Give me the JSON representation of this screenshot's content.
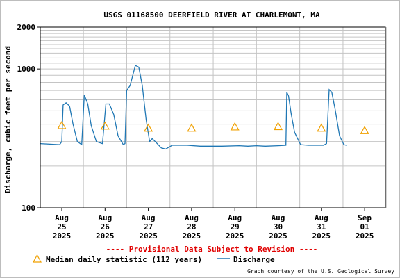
{
  "chart_data": {
    "type": "line",
    "title": "USGS 01168500 DEERFIELD RIVER AT CHARLEMONT, MA",
    "ylabel": "Discharge, cubic feet per second",
    "xlabel": "",
    "y_scale": "log",
    "ylim": [
      100,
      2000
    ],
    "y_tick_labels": [
      {
        "value": 100,
        "label": "100"
      },
      {
        "value": 1000,
        "label": "1000"
      },
      {
        "value": 2000,
        "label": "2000"
      }
    ],
    "x_tick_labels": [
      {
        "day": 0,
        "lines": [
          "Aug",
          "25",
          "2025"
        ]
      },
      {
        "day": 1,
        "lines": [
          "Aug",
          "26",
          "2025"
        ]
      },
      {
        "day": 2,
        "lines": [
          "Aug",
          "27",
          "2025"
        ]
      },
      {
        "day": 3,
        "lines": [
          "Aug",
          "28",
          "2025"
        ]
      },
      {
        "day": 4,
        "lines": [
          "Aug",
          "29",
          "2025"
        ]
      },
      {
        "day": 5,
        "lines": [
          "Aug",
          "30",
          "2025"
        ]
      },
      {
        "day": 6,
        "lines": [
          "Aug",
          "31",
          "2025"
        ]
      },
      {
        "day": 7,
        "lines": [
          "Sep",
          "01",
          "2025"
        ]
      }
    ],
    "grid": true,
    "series": [
      {
        "name": "Discharge",
        "color": "#1f77b4",
        "points": [
          [
            -0.5,
            290
          ],
          [
            -0.05,
            285
          ],
          [
            0.0,
            300
          ],
          [
            0.03,
            550
          ],
          [
            0.1,
            570
          ],
          [
            0.18,
            540
          ],
          [
            0.26,
            400
          ],
          [
            0.36,
            300
          ],
          [
            0.46,
            285
          ],
          [
            0.52,
            650
          ],
          [
            0.6,
            560
          ],
          [
            0.68,
            390
          ],
          [
            0.8,
            300
          ],
          [
            0.94,
            290
          ],
          [
            1.02,
            560
          ],
          [
            1.1,
            560
          ],
          [
            1.2,
            470
          ],
          [
            1.3,
            330
          ],
          [
            1.42,
            285
          ],
          [
            1.46,
            290
          ],
          [
            1.5,
            700
          ],
          [
            1.58,
            760
          ],
          [
            1.7,
            1060
          ],
          [
            1.78,
            1030
          ],
          [
            1.86,
            760
          ],
          [
            1.95,
            430
          ],
          [
            2.03,
            300
          ],
          [
            2.09,
            315
          ],
          [
            2.16,
            300
          ],
          [
            2.3,
            270
          ],
          [
            2.4,
            265
          ],
          [
            2.55,
            282
          ],
          [
            2.9,
            282
          ],
          [
            3.2,
            278
          ],
          [
            3.7,
            278
          ],
          [
            4.1,
            280
          ],
          [
            4.3,
            278
          ],
          [
            4.5,
            280
          ],
          [
            4.7,
            278
          ],
          [
            5.0,
            280
          ],
          [
            5.18,
            282
          ],
          [
            5.2,
            680
          ],
          [
            5.24,
            640
          ],
          [
            5.3,
            480
          ],
          [
            5.38,
            350
          ],
          [
            5.52,
            285
          ],
          [
            5.7,
            282
          ],
          [
            6.05,
            282
          ],
          [
            6.12,
            290
          ],
          [
            6.18,
            710
          ],
          [
            6.24,
            680
          ],
          [
            6.32,
            510
          ],
          [
            6.42,
            330
          ],
          [
            6.52,
            285
          ],
          [
            6.58,
            282
          ]
        ]
      },
      {
        "name": "Median daily statistic (112 years)",
        "color": "#f0a000",
        "marker": "triangle",
        "points": [
          [
            0.0,
            392
          ],
          [
            1.0,
            388
          ],
          [
            2.0,
            375
          ],
          [
            3.0,
            375
          ],
          [
            4.0,
            383
          ],
          [
            5.0,
            385
          ],
          [
            6.0,
            375
          ],
          [
            7.0,
            360
          ]
        ]
      }
    ],
    "legend": {
      "position": "bottom-left",
      "entries": [
        {
          "label": "Median daily statistic (112 years)"
        },
        {
          "label": "Discharge"
        }
      ]
    }
  },
  "notes": {
    "provisional": "---- Provisional Data Subject to Revision ----",
    "credit": "Graph courtesy of the U.S. Geological Survey"
  }
}
